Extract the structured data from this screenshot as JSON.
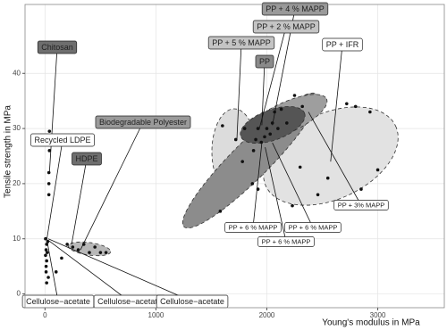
{
  "chart_data": {
    "type": "scatter",
    "x_label": "Young's modulus in MPa",
    "y_label": "Tensile strength in MPa",
    "xlim": [
      -180,
      3600
    ],
    "ylim": [
      -2.5,
      52.5
    ],
    "xticks": [
      0,
      1000,
      2000,
      3000
    ],
    "yticks": [
      0,
      10,
      20,
      30,
      40
    ],
    "grid": true,
    "color": "#111111",
    "x": [
      10,
      10,
      15,
      5,
      20,
      10,
      15,
      25,
      5,
      30,
      15,
      40,
      40,
      35,
      35,
      35,
      200,
      250,
      300,
      350,
      400,
      450,
      500,
      550,
      150,
      100,
      1580,
      1720,
      1780,
      1800,
      1870,
      1880,
      1900,
      1920,
      1950,
      1980,
      2000,
      2030,
      2050,
      2070,
      2100,
      2130,
      2180,
      2250,
      2320,
      1600,
      1920,
      2230,
      2460,
      2550,
      2720,
      2800,
      2930,
      3000,
      2850,
      2300
    ],
    "y": [
      4,
      5,
      6,
      7,
      7.5,
      8,
      9,
      9.5,
      10,
      3,
      2,
      29.5,
      26,
      22,
      20,
      18,
      9,
      8.5,
      8,
      9,
      7.5,
      8.5,
      7.5,
      7.5,
      6.5,
      4,
      15,
      28,
      24,
      30,
      20,
      26,
      28,
      30,
      27.5,
      28.5,
      30,
      29,
      31,
      33,
      30,
      33.5,
      31,
      36,
      34,
      30.5,
      19,
      16,
      18,
      21,
      34.5,
      34,
      33,
      22.5,
      19,
      23
    ],
    "annotations": [
      {
        "text": "Chitosan",
        "fill": "#6e6e6e",
        "x": 40,
        "y": 22
      },
      {
        "text": "Recycled LDPE",
        "fill": "#ffffff",
        "x": 15,
        "y": 9.7
      },
      {
        "text": "Biodegradable Polyester",
        "fill": "#9a9a9a",
        "x": 320,
        "y": 8
      },
      {
        "text": "HDPE",
        "fill": "#6e6e6e",
        "x": 240,
        "y": 9
      },
      {
        "text": "Cellulose−acetate",
        "fill": "#ffffff",
        "x": 20,
        "y": 9.5
      },
      {
        "text": "Cellulose−acetate",
        "fill": "#ffffff",
        "x": 25,
        "y": 9.8
      },
      {
        "text": "Cellulose−acetate",
        "fill": "#ffffff",
        "x": 30,
        "y": 10
      },
      {
        "text": "PP + 4 % MAPP",
        "fill": "#9a9a9a",
        "x": 2050,
        "y": 30.6
      },
      {
        "text": "PP + 2 % MAPP",
        "fill": "#c4c4c4",
        "x": 1930,
        "y": 29.8
      },
      {
        "text": "PP + 5 % MAPP",
        "fill": "#c4c4c4",
        "x": 1730,
        "y": 28
      },
      {
        "text": "PP",
        "fill": "#8a8a8a",
        "x": 1955,
        "y": 30.6
      },
      {
        "text": "PP + IFR",
        "fill": "#ffffff",
        "x": 2575,
        "y": 24
      },
      {
        "text": "PP + 3% MAPP",
        "fill": "#ffffff",
        "x": 2375,
        "y": 33
      },
      {
        "text": "PP + 6 % MAPP",
        "fill": "#ffffff",
        "x": 1955,
        "y": 27.4
      },
      {
        "text": "PP + 6 % MAPP",
        "fill": "#ffffff",
        "x": 2050,
        "y": 27.4
      },
      {
        "text": "PP + 6 % MAPP",
        "fill": "#ffffff",
        "x": 1985,
        "y": 26.6
      }
    ]
  }
}
